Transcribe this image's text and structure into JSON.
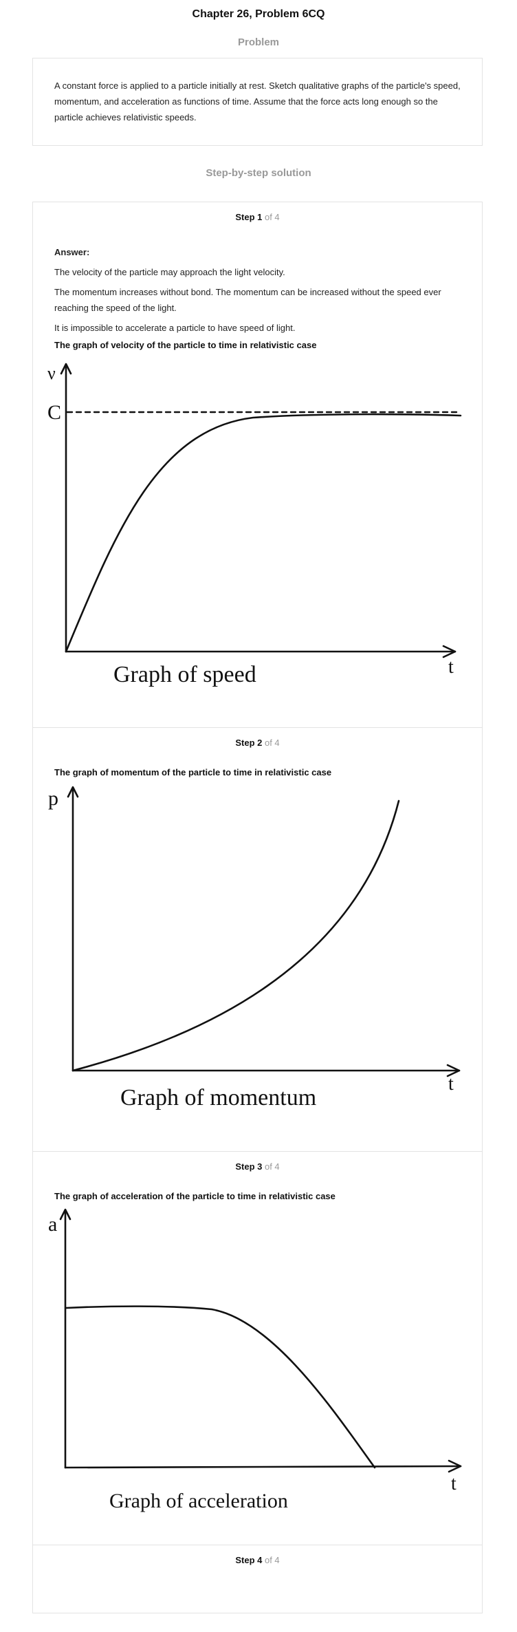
{
  "header": {
    "title": "Chapter 26, Problem 6CQ"
  },
  "problem": {
    "heading": "Problem",
    "text": "A constant force is applied to a particle initially at rest. Sketch qualitative graphs of the particle's speed, momentum, and acceleration as functions of  time. Assume that the force acts long enough so the particle achieves relativistic speeds."
  },
  "solution": {
    "heading": "Step-by-step solution",
    "steps": [
      {
        "label": "Step 1",
        "of": " of 4",
        "answer_label": "Answer:",
        "lines": [
          "The velocity of the particle may approach the light velocity.",
          "The momentum increases without bond. The momentum can be increased without the speed ever reaching the speed of the light.",
          "It is impossible to accelerate a particle to have speed of light."
        ],
        "caption": "The graph of velocity of the particle to time in relativistic case",
        "graph": {
          "y_axis_label": "ν",
          "limit_label": "C",
          "x_axis_label": "t",
          "title": "Graph of speed"
        }
      },
      {
        "label": "Step 2",
        "of": " of 4",
        "caption": "The graph of momentum of the particle to time in relativistic case",
        "graph": {
          "y_axis_label": "p",
          "x_axis_label": "t",
          "title": "Graph of momentum"
        }
      },
      {
        "label": "Step 3",
        "of": " of 4",
        "caption": "The graph of acceleration of the particle to time in relativistic case",
        "graph": {
          "y_axis_label": "a",
          "x_axis_label": "t",
          "title": "Graph of acceleration"
        }
      },
      {
        "label": "Step 4",
        "of": " of 4"
      }
    ]
  }
}
